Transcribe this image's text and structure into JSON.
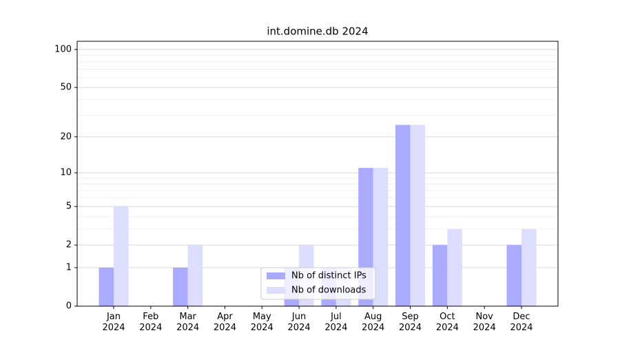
{
  "chart_data": {
    "type": "bar",
    "title": "int.domine.db 2024",
    "categories": [
      "Jan\n2024",
      "Feb\n2024",
      "Mar\n2024",
      "Apr\n2024",
      "May\n2024",
      "Jun\n2024",
      "Jul\n2024",
      "Aug\n2024",
      "Sep\n2024",
      "Oct\n2024",
      "Nov\n2024",
      "Dec\n2024"
    ],
    "series": [
      {
        "name": "Nb of distinct IPs",
        "color": "#aaaaff",
        "values": [
          1,
          0,
          1,
          0,
          0,
          1,
          1,
          11,
          25,
          2,
          0,
          2
        ]
      },
      {
        "name": "Nb of downloads",
        "color": "#ddddff",
        "values": [
          5,
          0,
          2,
          0,
          0,
          2,
          1,
          11,
          25,
          3,
          0,
          3
        ]
      }
    ],
    "yscale": "log1p",
    "ylim": [
      0,
      116
    ],
    "yticks": [
      0,
      1,
      2,
      5,
      10,
      20,
      50,
      100
    ],
    "minor_yticks": [
      3,
      4,
      6,
      7,
      8,
      9,
      30,
      40,
      60,
      70,
      80,
      90
    ],
    "grid": true,
    "legend": "lower center"
  }
}
